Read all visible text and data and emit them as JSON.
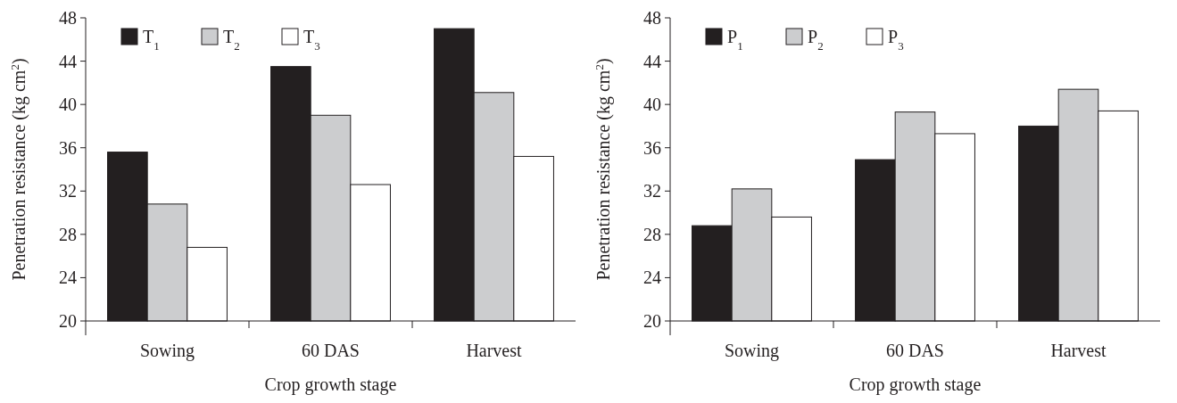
{
  "chart_data": [
    {
      "type": "bar",
      "xlabel": "Crop growth stage",
      "ylabel": "Penetration resistance (kg cm$^{2}$)",
      "categories": [
        "Sowing",
        "60 DAS",
        "Harvest"
      ],
      "series": [
        {
          "name": "T$_{1}$",
          "color": "#231f20",
          "values": [
            35.6,
            43.5,
            47.0
          ]
        },
        {
          "name": "T$_{2}$",
          "color": "#cccdcf",
          "values": [
            30.8,
            39.0,
            41.1
          ]
        },
        {
          "name": "T$_{3}$",
          "color": "#ffffff",
          "values": [
            26.8,
            32.6,
            35.2
          ]
        }
      ],
      "ylim": [
        20,
        48
      ],
      "yticks": [
        20,
        24,
        28,
        32,
        36,
        40,
        44,
        48
      ],
      "legend": "top left"
    },
    {
      "type": "bar",
      "xlabel": "Crop growth stage",
      "ylabel": "Penetration resistance (kg cm$^{2}$)",
      "categories": [
        "Sowing",
        "60 DAS",
        "Harvest"
      ],
      "series": [
        {
          "name": "P$_{1}$",
          "color": "#231f20",
          "values": [
            28.8,
            34.9,
            38.0
          ]
        },
        {
          "name": "P$_{2}$",
          "color": "#cccdcf",
          "values": [
            32.2,
            39.3,
            41.4
          ]
        },
        {
          "name": "P$_{3}$",
          "color": "#ffffff",
          "values": [
            29.6,
            37.3,
            39.4
          ]
        }
      ],
      "ylim": [
        20,
        48
      ],
      "yticks": [
        20,
        24,
        28,
        32,
        36,
        40,
        44,
        48
      ],
      "legend": "top left"
    }
  ]
}
